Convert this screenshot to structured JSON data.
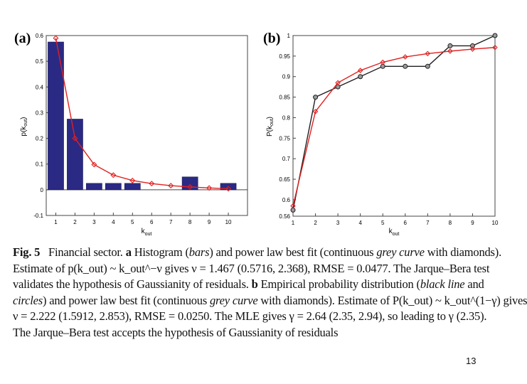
{
  "chart_data": [
    {
      "type": "bar",
      "panel_label": "(a)",
      "xlabel": "k_out",
      "ylabel": "p(k_out)",
      "xlim": [
        0.5,
        11
      ],
      "ylim": [
        -0.1,
        0.6
      ],
      "x_ticks": [
        1,
        2,
        3,
        4,
        5,
        6,
        7,
        8,
        9,
        10
      ],
      "y_ticks": [
        -0.1,
        0,
        0.1,
        0.2,
        0.3,
        0.4,
        0.5,
        0.6
      ],
      "bars": [
        {
          "x": 1,
          "value": 0.575
        },
        {
          "x": 2,
          "value": 0.275
        },
        {
          "x": 3,
          "value": 0.025
        },
        {
          "x": 4,
          "value": 0.025
        },
        {
          "x": 5,
          "value": 0.025
        },
        {
          "x": 8,
          "value": 0.05
        },
        {
          "x": 10,
          "value": 0.025
        }
      ],
      "series": [
        {
          "x": [
            1,
            2,
            3,
            4,
            5,
            6,
            7,
            8,
            9,
            10
          ],
          "values": [
            0.59,
            0.2,
            0.098,
            0.057,
            0.036,
            0.024,
            0.016,
            0.011,
            0.007,
            0.004
          ]
        }
      ],
      "colors": {
        "bars": "#2a2a84",
        "fit": "#e02020"
      },
      "grid": false
    },
    {
      "type": "line",
      "panel_label": "(b)",
      "xlabel": "k_out",
      "ylabel": "P(k_out)",
      "xlim": [
        1,
        10
      ],
      "ylim": [
        0.56,
        1.0
      ],
      "x_ticks": [
        1,
        2,
        3,
        4,
        5,
        6,
        7,
        8,
        9,
        10
      ],
      "y_ticks": [
        0.56,
        0.6,
        0.65,
        0.7,
        0.75,
        0.8,
        0.85,
        0.9,
        0.95,
        1
      ],
      "y_tick_labels": [
        "0.56",
        "0.6",
        "0.65",
        "0.7",
        "0.75",
        "0.8",
        "0.85",
        "0.9",
        "0.95",
        "1"
      ],
      "series": [
        {
          "x": [
            1,
            2,
            3,
            4,
            5,
            6,
            7,
            8,
            9,
            10
          ],
          "values": [
            0.575,
            0.85,
            0.875,
            0.9,
            0.925,
            0.925,
            0.925,
            0.975,
            0.975,
            1.0
          ]
        },
        {
          "x": [
            1,
            2,
            3,
            4,
            5,
            6,
            7,
            8,
            9,
            10
          ],
          "values": [
            0.585,
            0.815,
            0.885,
            0.915,
            0.935,
            0.948,
            0.956,
            0.962,
            0.967,
            0.971
          ]
        }
      ],
      "colors": {
        "empirical": "#202020",
        "fit": "#e02020"
      },
      "grid": false
    }
  ],
  "caption": {
    "fig_label": "Fig. 5",
    "l1_a": "Financial sector.",
    "l1_b": "a",
    "l1_c": "Histogram (",
    "l1_d": "bars",
    "l1_e": ") and power law best fit (continuous",
    "l1_f": "grey curve",
    "l1_g": "with diamonds).",
    "l2": "Estimate of p(k_out) ~ k_out^−ν gives ν = 1.467 (0.5716, 2.368), RMSE = 0.0477. The Jarque–Bera test",
    "l3_a": "validates the hypothesis of Gaussianity of residuals.",
    "l3_b": "b",
    "l3_c": "Empirical probability distribution (",
    "l3_d": "black line",
    "l3_e": "and",
    "l4_a": "circles",
    "l4_b": ") and power law best fit (continuous",
    "l4_c": "grey curve",
    "l4_d": "with diamonds). Estimate of P(k_out) ~ k_out^(1−γ) gives",
    "l5": "ν = 2.222 (1.5912, 2.853), RMSE = 0.0250. The MLE gives γ = 2.64 (2.35, 2.94), so leading to γ (2.35).",
    "l6": "The Jarque–Bera test accepts the hypothesis of Gaussianity of residuals"
  },
  "page_number": "13"
}
